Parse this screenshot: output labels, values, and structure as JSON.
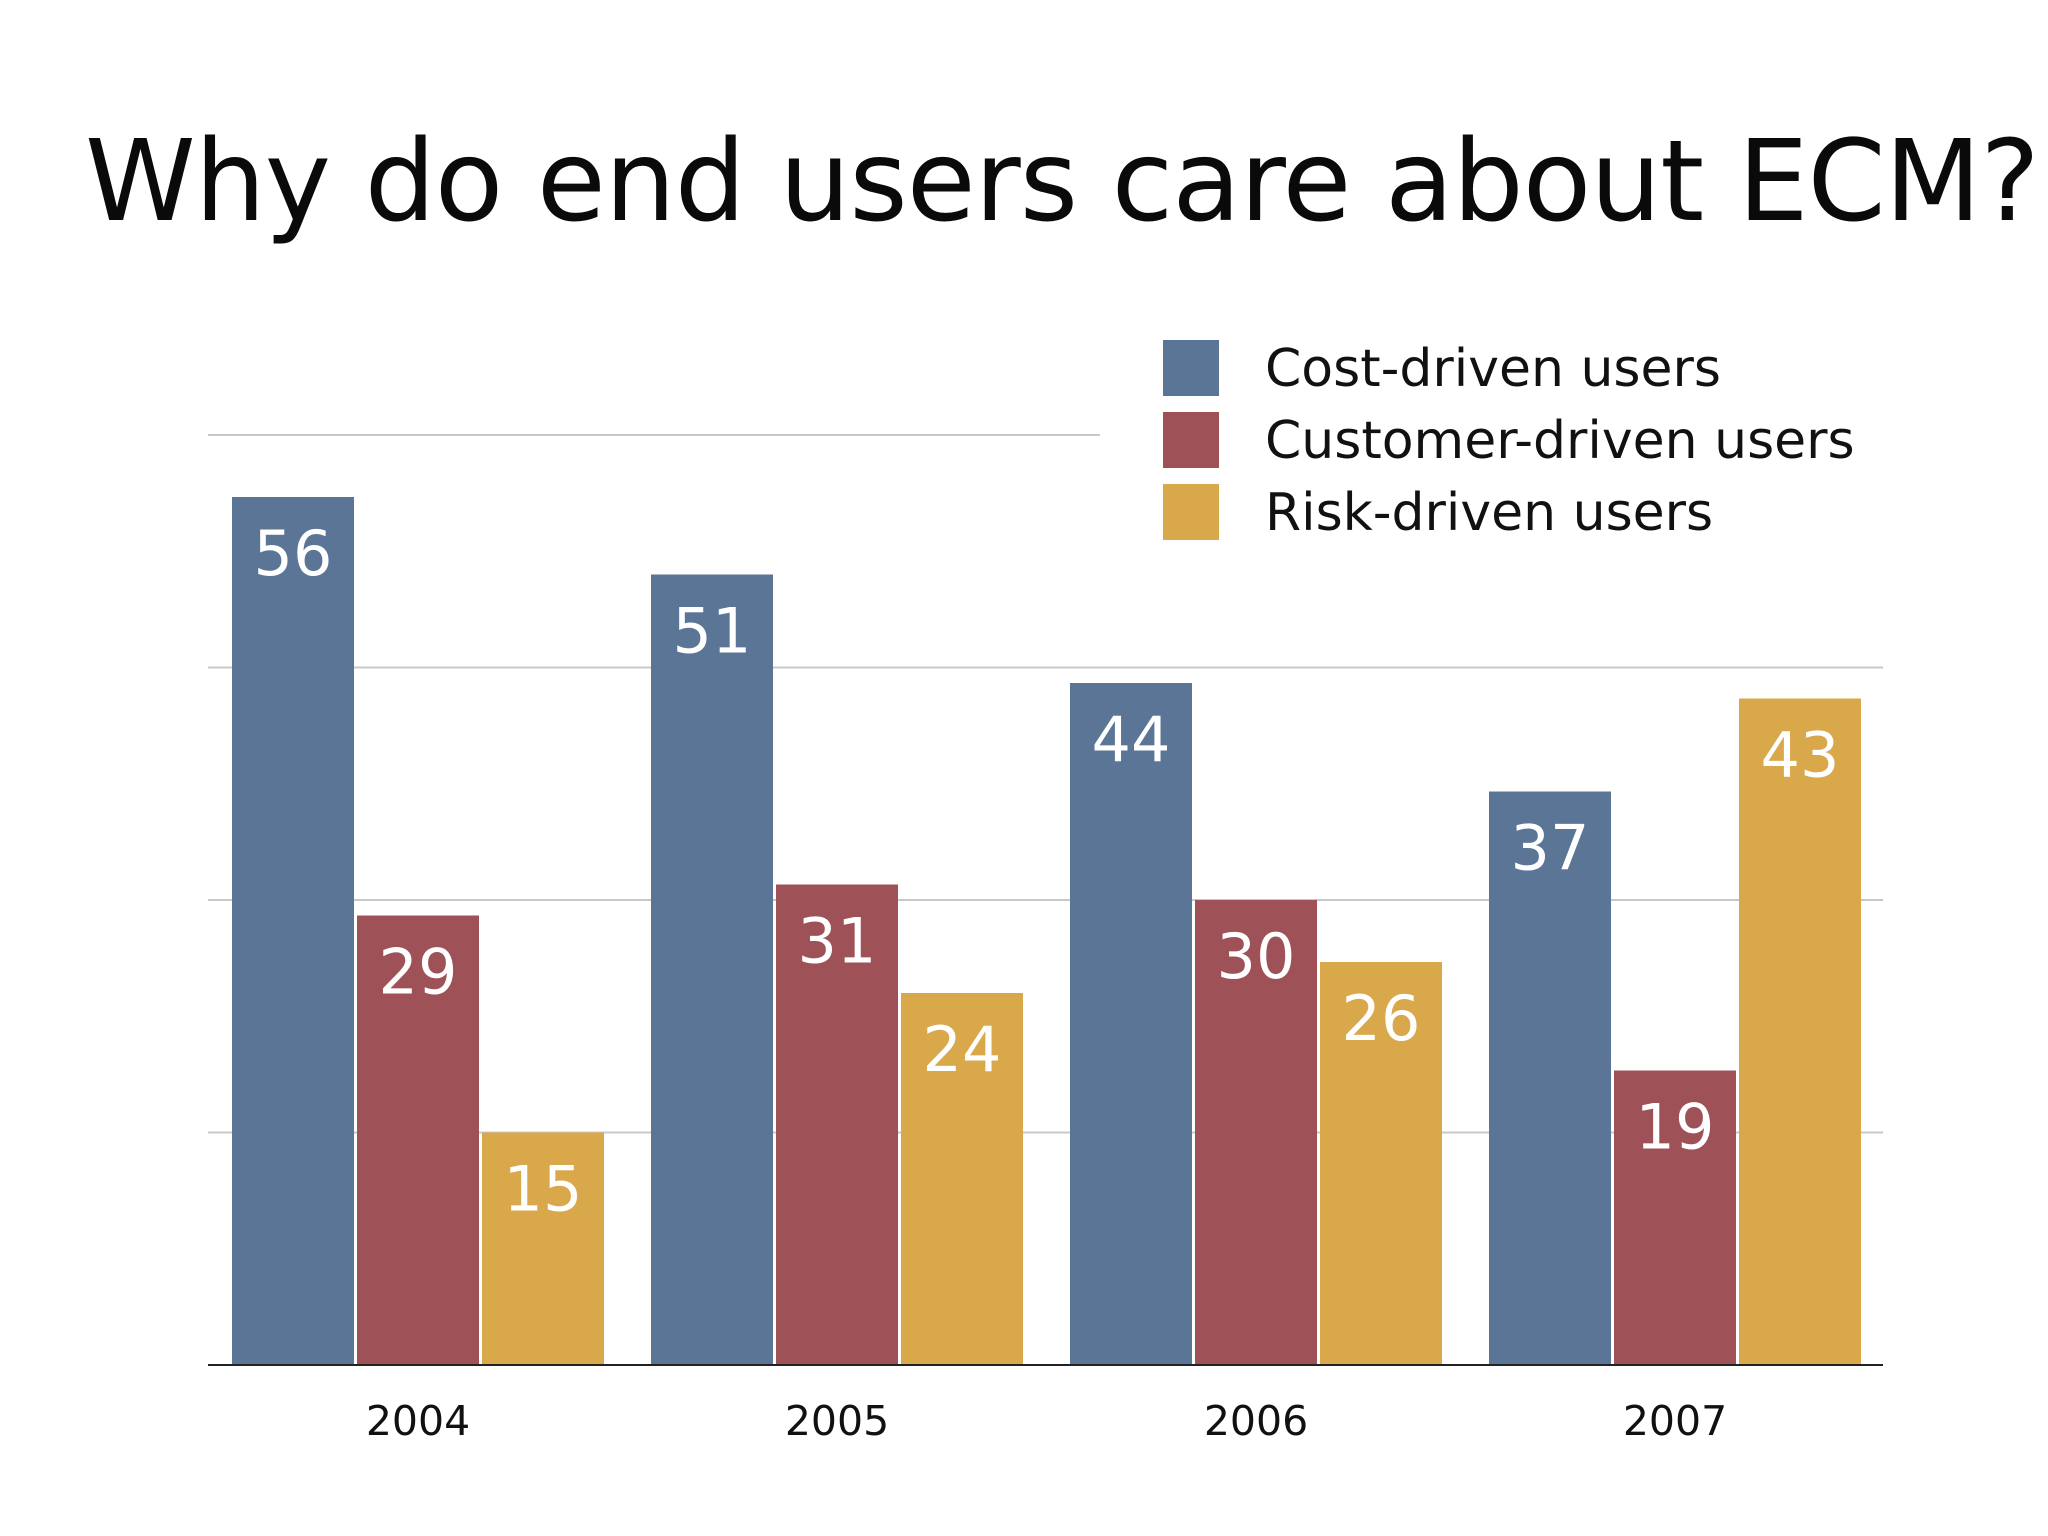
{
  "slide": {
    "title": "Why do end users care about ECM?"
  },
  "colors": {
    "cost": "#5b7597",
    "customer": "#9f5158",
    "risk": "#d9a84b",
    "grid": "#c8c8c8",
    "axis": "#222222"
  },
  "chart_data": {
    "type": "bar",
    "title": "",
    "xlabel": "",
    "ylabel": "",
    "categories": [
      "2004",
      "2005",
      "2006",
      "2007"
    ],
    "series": [
      {
        "name": "Cost-driven users",
        "color": "#5b7597",
        "values": [
          56,
          51,
          44,
          37
        ]
      },
      {
        "name": "Customer-driven users",
        "color": "#9f5158",
        "values": [
          29,
          31,
          30,
          19
        ]
      },
      {
        "name": "Risk-driven users",
        "color": "#d9a84b",
        "values": [
          15,
          24,
          26,
          43
        ]
      }
    ],
    "ylim": [
      0,
      60
    ],
    "gridlines": [
      15,
      30,
      45,
      60
    ],
    "grid": true,
    "data_labels": true,
    "legend_position": "top-right"
  }
}
